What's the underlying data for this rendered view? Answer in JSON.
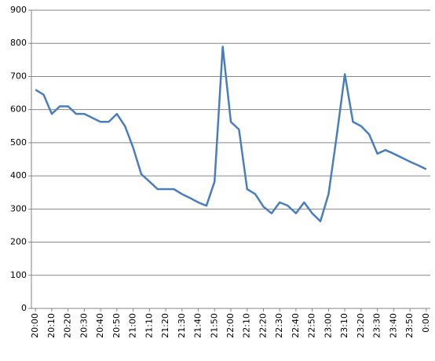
{
  "chart_data": {
    "type": "line",
    "categories": [
      "20:00",
      null,
      "20:10",
      null,
      "20:20",
      null,
      "20:30",
      null,
      "20:40",
      null,
      "20:50",
      null,
      "21:00",
      null,
      "21:10",
      null,
      "21:20",
      null,
      "21:30",
      null,
      "21:40",
      null,
      "21:50",
      null,
      "22:00",
      null,
      "22:10",
      null,
      "22:20",
      null,
      "22:30",
      null,
      "22:40",
      null,
      "22:50",
      null,
      "23:00",
      null,
      "23:10",
      null,
      "23:20",
      null,
      "23:30",
      null,
      "23:40",
      null,
      "23:50",
      null,
      "0:00"
    ],
    "values": [
      660,
      645,
      587,
      610,
      610,
      587,
      587,
      575,
      563,
      563,
      587,
      550,
      485,
      405,
      383,
      360,
      360,
      360,
      345,
      333,
      320,
      310,
      383,
      790,
      563,
      540,
      360,
      345,
      307,
      287,
      320,
      310,
      287,
      320,
      287,
      263,
      345,
      520,
      707,
      563,
      550,
      525,
      467,
      478,
      467,
      455,
      443,
      432,
      420
    ],
    "color": "#4a7ebb",
    "ylim": [
      0,
      900
    ],
    "yticks": [
      0,
      100,
      200,
      300,
      400,
      500,
      600,
      700,
      800,
      900
    ],
    "grid": true
  }
}
